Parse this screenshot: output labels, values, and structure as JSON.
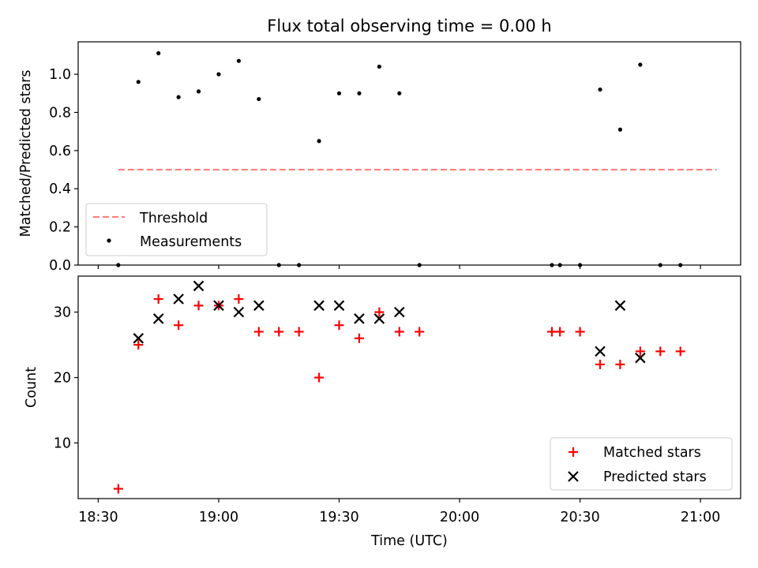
{
  "chart_data": [
    {
      "type": "scatter",
      "title": "Flux total observing time = 0.00 h",
      "xlabel": "",
      "ylabel": "Matched/Predicted stars",
      "xlim": [
        -5,
        160
      ],
      "ylim": [
        0,
        1.17
      ],
      "yticks": [
        0.0,
        0.2,
        0.4,
        0.6,
        0.8,
        1.0
      ],
      "ytick_labels": [
        "0.0",
        "0.2",
        "0.4",
        "0.6",
        "0.8",
        "1.0"
      ],
      "legend_position": "lower-left",
      "threshold": {
        "name": "Threshold",
        "value": 0.5,
        "x_range": [
          5,
          154
        ],
        "color": "#ff7f7f"
      },
      "series": [
        {
          "name": "Measurements",
          "color": "#000000",
          "points": [
            [
              5,
              0.0
            ],
            [
              10,
              0.96
            ],
            [
              15,
              1.11
            ],
            [
              20,
              0.88
            ],
            [
              25,
              0.91
            ],
            [
              30,
              1.0
            ],
            [
              35,
              1.07
            ],
            [
              40,
              0.87
            ],
            [
              45,
              0.0
            ],
            [
              50,
              0.0
            ],
            [
              55,
              0.65
            ],
            [
              60,
              0.9
            ],
            [
              65,
              0.9
            ],
            [
              70,
              1.04
            ],
            [
              75,
              0.9
            ],
            [
              80,
              0.0
            ],
            [
              113,
              0.0
            ],
            [
              115,
              0.0
            ],
            [
              120,
              0.0
            ],
            [
              125,
              0.92
            ],
            [
              130,
              0.71
            ],
            [
              135,
              1.05
            ],
            [
              140,
              0.0
            ],
            [
              145,
              0.0
            ]
          ]
        }
      ]
    },
    {
      "type": "scatter",
      "title": "",
      "xlabel": "Time (UTC)",
      "ylabel": "Count",
      "xlim": [
        -5,
        160
      ],
      "ylim": [
        1.5,
        35.5
      ],
      "yticks": [
        10,
        20,
        30
      ],
      "ytick_labels": [
        "10",
        "20",
        "30"
      ],
      "xticks": [
        0,
        30,
        60,
        90,
        120,
        150
      ],
      "xtick_labels": [
        "18:30",
        "19:00",
        "19:30",
        "20:00",
        "20:30",
        "21:00"
      ],
      "legend_position": "lower-right",
      "series": [
        {
          "name": "Matched stars",
          "marker": "plus",
          "color": "#ff0000",
          "points": [
            [
              5,
              3
            ],
            [
              10,
              25
            ],
            [
              15,
              32
            ],
            [
              20,
              28
            ],
            [
              25,
              31
            ],
            [
              30,
              31
            ],
            [
              35,
              32
            ],
            [
              40,
              27
            ],
            [
              45,
              27
            ],
            [
              50,
              27
            ],
            [
              55,
              20
            ],
            [
              60,
              28
            ],
            [
              65,
              26
            ],
            [
              70,
              30
            ],
            [
              75,
              27
            ],
            [
              80,
              27
            ],
            [
              113,
              27
            ],
            [
              115,
              27
            ],
            [
              120,
              27
            ],
            [
              125,
              22
            ],
            [
              130,
              22
            ],
            [
              135,
              24
            ],
            [
              140,
              24
            ],
            [
              145,
              24
            ]
          ]
        },
        {
          "name": "Predicted stars",
          "marker": "x",
          "color": "#000000",
          "points": [
            [
              10,
              26
            ],
            [
              15,
              29
            ],
            [
              20,
              32
            ],
            [
              25,
              34
            ],
            [
              30,
              31
            ],
            [
              35,
              30
            ],
            [
              40,
              31
            ],
            [
              55,
              31
            ],
            [
              60,
              31
            ],
            [
              65,
              29
            ],
            [
              70,
              29
            ],
            [
              75,
              30
            ],
            [
              125,
              24
            ],
            [
              130,
              31
            ],
            [
              135,
              23
            ]
          ]
        }
      ]
    }
  ]
}
